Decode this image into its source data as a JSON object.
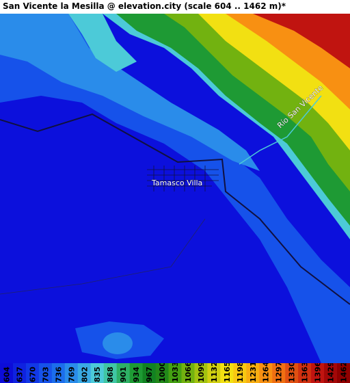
{
  "header": {
    "title": "San Vicente la Mesilla @ elevation.city (scale 604 .. 1462 m)*"
  },
  "map": {
    "labels": [
      "Río San Vicente",
      "Tamasco Villa"
    ]
  },
  "legend": {
    "items": [
      {
        "value": 604,
        "color": "#0c0cd8"
      },
      {
        "value": 637,
        "color": "#0f22e0"
      },
      {
        "value": 670,
        "color": "#1238e6"
      },
      {
        "value": 703,
        "color": "#1652ea"
      },
      {
        "value": 736,
        "color": "#1c6eec"
      },
      {
        "value": 769,
        "color": "#2a8cea"
      },
      {
        "value": 802,
        "color": "#3aaae4"
      },
      {
        "value": 835,
        "color": "#4ccad8"
      },
      {
        "value": 868,
        "color": "#40c6a4"
      },
      {
        "value": 901,
        "color": "#2eb066"
      },
      {
        "value": 934,
        "color": "#1e9a34"
      },
      {
        "value": 967,
        "color": "#128222"
      },
      {
        "value": 1000,
        "color": "#22881a"
      },
      {
        "value": 1033,
        "color": "#44a012"
      },
      {
        "value": 1066,
        "color": "#72b210"
      },
      {
        "value": 1099,
        "color": "#a2c210"
      },
      {
        "value": 1132,
        "color": "#d0d012"
      },
      {
        "value": 1165,
        "color": "#f2e012"
      },
      {
        "value": 1198,
        "color": "#f8c812"
      },
      {
        "value": 1231,
        "color": "#f8ae12"
      },
      {
        "value": 1264,
        "color": "#f89012"
      },
      {
        "value": 1297,
        "color": "#f07012"
      },
      {
        "value": 1330,
        "color": "#e05012"
      },
      {
        "value": 1363,
        "color": "#d03010"
      },
      {
        "value": 1396,
        "color": "#c01410"
      },
      {
        "value": 1429,
        "color": "#a40808"
      },
      {
        "value": 1462,
        "color": "#900000"
      }
    ]
  }
}
